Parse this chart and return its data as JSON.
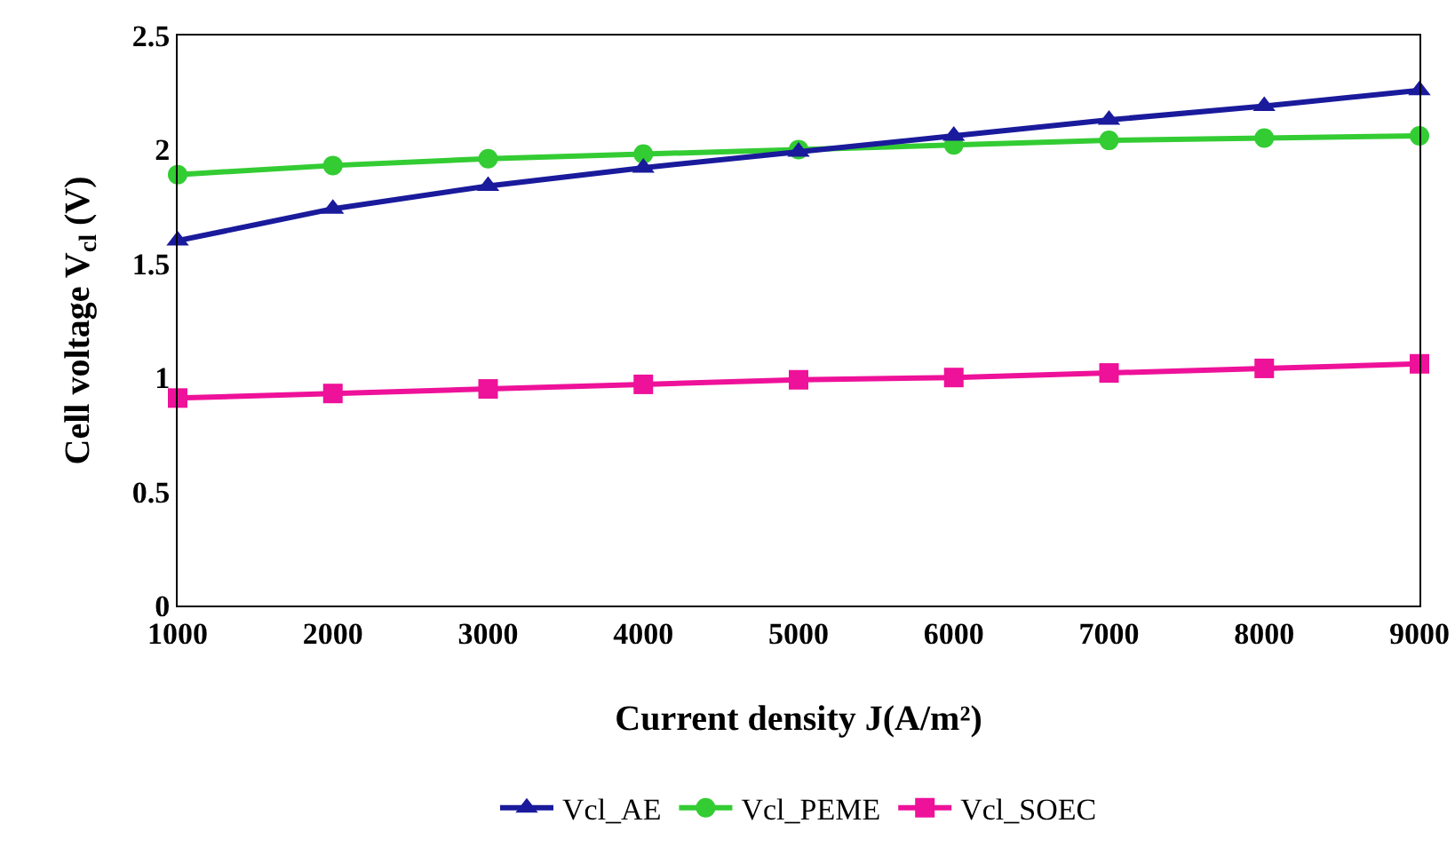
{
  "chart_data": {
    "type": "line",
    "xlabel": "Current density J(A/m²)",
    "ylabel": "Cell voltage V$_{cl}$ (V)",
    "x": [
      1000,
      2000,
      3000,
      4000,
      5000,
      6000,
      7000,
      8000,
      9000
    ],
    "series": [
      {
        "name": "Vcl_AE",
        "color": "#1a1a9c",
        "marker": "triangle",
        "values": [
          1.6,
          1.74,
          1.84,
          1.92,
          1.99,
          2.06,
          2.13,
          2.19,
          2.26
        ]
      },
      {
        "name": "Vcl_PEME",
        "color": "#33cc33",
        "marker": "circle",
        "values": [
          1.89,
          1.93,
          1.96,
          1.98,
          2.0,
          2.02,
          2.04,
          2.05,
          2.06
        ]
      },
      {
        "name": "Vcl_SOEC",
        "color": "#ee1199",
        "marker": "square",
        "values": [
          0.91,
          0.93,
          0.95,
          0.97,
          0.99,
          1.0,
          1.02,
          1.04,
          1.06
        ]
      }
    ],
    "xlim": [
      1000,
      9000
    ],
    "xticks": [
      1000,
      2000,
      3000,
      4000,
      5000,
      6000,
      7000,
      8000,
      9000
    ],
    "ylim": [
      0,
      2.5
    ],
    "yticks": [
      0,
      0.5,
      1,
      1.5,
      2,
      2.5
    ],
    "grid": false,
    "legend": "bottom",
    "line_style": "solid"
  }
}
